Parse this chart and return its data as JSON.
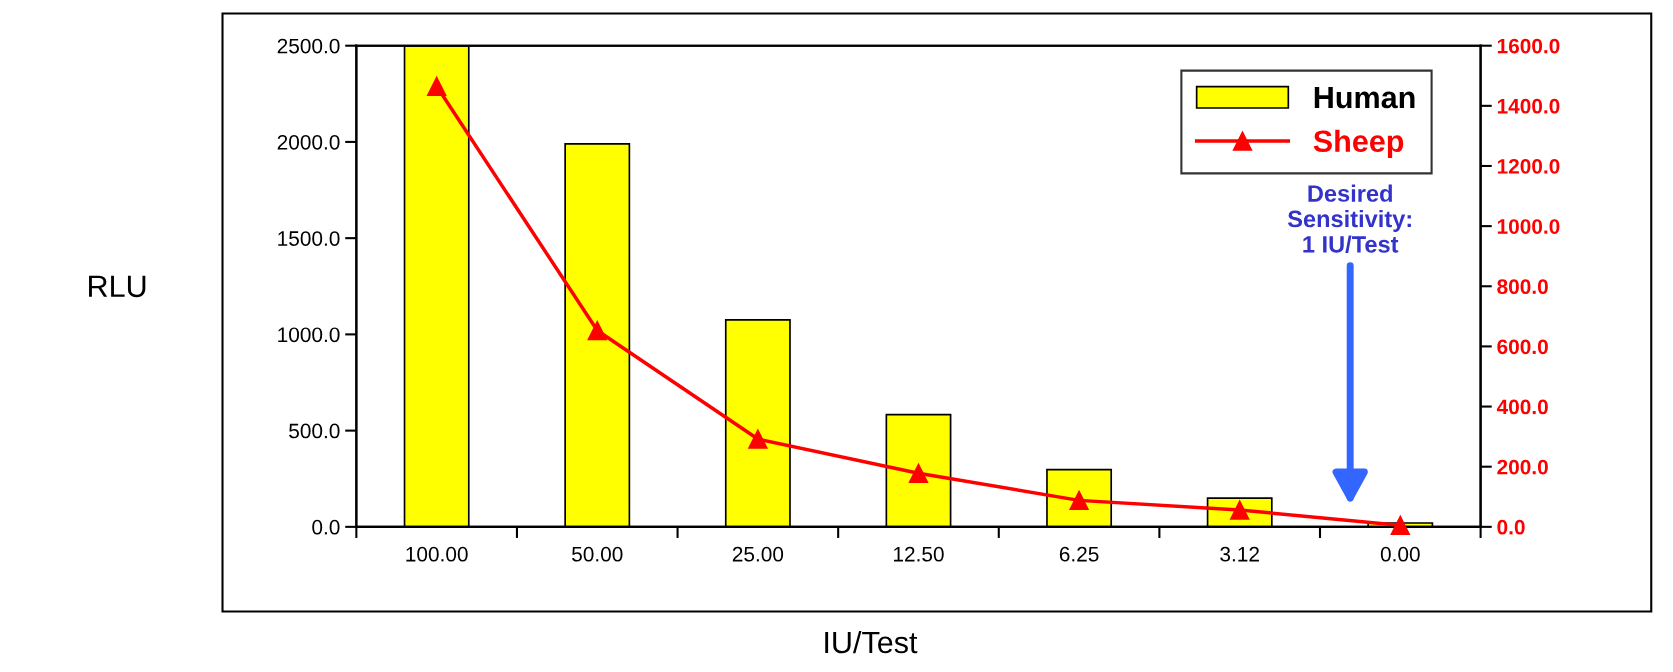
{
  "chart_data": {
    "type": "bar",
    "xlabel": "IU/Test",
    "ylabel": "RLU",
    "categories": [
      "100.00",
      "50.00",
      "25.00",
      "12.50",
      "6.25",
      "3.12",
      "0.00"
    ],
    "series": [
      {
        "name": "Human",
        "color": "#ffff00",
        "values": [
          2500,
          1990,
          1075,
          583,
          297,
          149,
          20
        ]
      },
      {
        "name": "Sheep",
        "type": "line",
        "axis": "y2",
        "color": "#ff0000",
        "marker": "triangle",
        "line_style": "solid",
        "values": [
          1465,
          653,
          292,
          178,
          88,
          56,
          5
        ]
      }
    ],
    "ylim": [
      0,
      2500
    ],
    "yticks": [
      {
        "value": 0,
        "label": "0.0"
      },
      {
        "value": 500,
        "label": "500.0"
      },
      {
        "value": 1000,
        "label": "1000.0"
      },
      {
        "value": 1500,
        "label": "1500.0"
      },
      {
        "value": 2000,
        "label": "2000.0"
      },
      {
        "value": 2500,
        "label": "2500.0"
      }
    ],
    "y2lim": [
      0,
      1600
    ],
    "y2ticks": [
      {
        "value": 0,
        "label": "0.0"
      },
      {
        "value": 200,
        "label": "200.0"
      },
      {
        "value": 400,
        "label": "400.0"
      },
      {
        "value": 600,
        "label": "600.0"
      },
      {
        "value": 800,
        "label": "800.0"
      },
      {
        "value": 1000,
        "label": "1000.0"
      },
      {
        "value": 1200,
        "label": "1200.0"
      },
      {
        "value": 1400,
        "label": "1400.0"
      },
      {
        "value": 1600,
        "label": "1600.0"
      }
    ],
    "annotations": [
      "Desired\nSensitivity:\n1 IU/Test"
    ],
    "legend": "top right",
    "grid": false
  }
}
